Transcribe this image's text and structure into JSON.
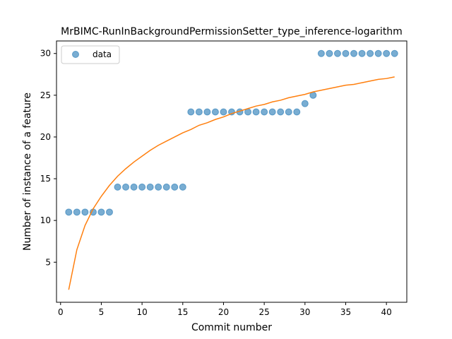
{
  "chart_data": {
    "type": "scatter",
    "title": "MrBIMC-RunInBackgroundPermissionSetter_type_inference-logarithm",
    "xlabel": "Commit number",
    "ylabel": "Number of instance of a feature",
    "xlim": [
      -0.5,
      42.5
    ],
    "ylim": [
      0.2,
      31.5
    ],
    "xticks": [
      0,
      5,
      10,
      15,
      20,
      25,
      30,
      35,
      40
    ],
    "yticks": [
      5,
      10,
      15,
      20,
      25,
      30
    ],
    "grid": false,
    "legend_position": "top-left",
    "series": [
      {
        "name": "data",
        "kind": "scatter",
        "color": "#1f77b4",
        "x": [
          1,
          2,
          3,
          4,
          5,
          6,
          7,
          8,
          9,
          10,
          11,
          12,
          13,
          14,
          15,
          16,
          17,
          18,
          19,
          20,
          21,
          22,
          23,
          24,
          25,
          26,
          27,
          28,
          29,
          30,
          31,
          32,
          33,
          34,
          35,
          36,
          37,
          38,
          39,
          40,
          41
        ],
        "y": [
          11,
          11,
          11,
          11,
          11,
          11,
          14,
          14,
          14,
          14,
          14,
          14,
          14,
          14,
          14,
          23,
          23,
          23,
          23,
          23,
          23,
          23,
          23,
          23,
          23,
          23,
          23,
          23,
          23,
          24,
          25,
          30,
          30,
          30,
          30,
          30,
          30,
          30,
          30,
          30,
          30
        ]
      },
      {
        "name": "",
        "kind": "line",
        "color": "#ff7f0e",
        "x": [
          1,
          2,
          3,
          4,
          5,
          6,
          7,
          8,
          9,
          10,
          11,
          12,
          13,
          14,
          15,
          16,
          17,
          18,
          19,
          20,
          21,
          22,
          23,
          24,
          25,
          26,
          27,
          28,
          29,
          30,
          31,
          32,
          33,
          34,
          35,
          36,
          37,
          38,
          39,
          40,
          41
        ],
        "y": [
          1.7,
          6.5,
          9.4,
          11.4,
          12.9,
          14.2,
          15.3,
          16.2,
          17.0,
          17.7,
          18.4,
          19.0,
          19.5,
          20.0,
          20.5,
          20.9,
          21.4,
          21.7,
          22.1,
          22.4,
          22.8,
          23.1,
          23.4,
          23.7,
          23.9,
          24.2,
          24.4,
          24.7,
          24.9,
          25.1,
          25.4,
          25.6,
          25.8,
          26.0,
          26.2,
          26.3,
          26.5,
          26.7,
          26.9,
          27.0,
          27.2
        ]
      }
    ]
  }
}
